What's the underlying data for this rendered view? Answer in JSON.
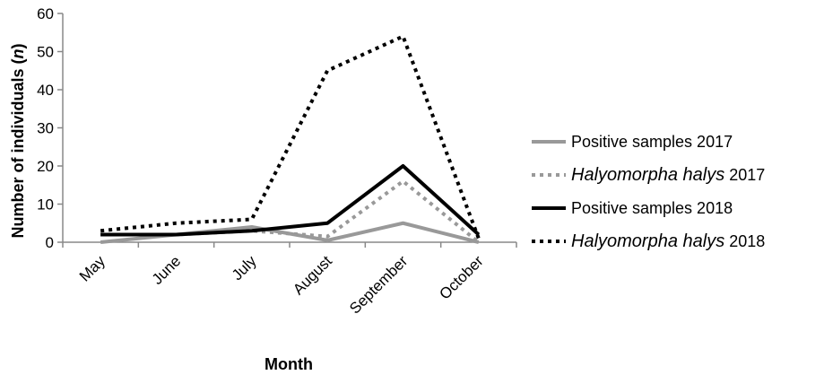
{
  "chart_data": {
    "type": "line",
    "categories": [
      "May",
      "June",
      "July",
      "August",
      "September",
      "October"
    ],
    "xlabel": "Month",
    "ylabel": "Number of individuals (n)",
    "ylabel_prefix": "Number of individuals (",
    "ylabel_italic": "n",
    "ylabel_suffix": ")",
    "ylim": [
      0,
      60
    ],
    "yticks": [
      "0",
      "10",
      "20",
      "30",
      "40",
      "50",
      "60"
    ],
    "grid": false,
    "legend_position": "right",
    "series": [
      {
        "name": "Positive samples 2017",
        "legend_italic": "",
        "legend_rest": "Positive samples 2017",
        "values": [
          0,
          2,
          4,
          0.5,
          5,
          0
        ],
        "color": "#999999",
        "style": "solid"
      },
      {
        "name": "Halyomorpha halys 2017",
        "legend_italic": "Halyomorpha halys",
        "legend_rest": " 2017",
        "values": [
          2,
          2,
          3,
          1.5,
          16,
          0
        ],
        "color": "#999999",
        "style": "dotted"
      },
      {
        "name": "Positive samples 2018",
        "legend_italic": "",
        "legend_rest": "Positive samples 2018",
        "values": [
          2,
          2,
          3,
          5,
          20,
          2
        ],
        "color": "#000000",
        "style": "solid"
      },
      {
        "name": "Halyomorpha halys 2018",
        "legend_italic": "Halyomorpha halys",
        "legend_rest": " 2018",
        "values": [
          3,
          5,
          6,
          45,
          54,
          1
        ],
        "color": "#000000",
        "style": "dotted"
      }
    ]
  }
}
